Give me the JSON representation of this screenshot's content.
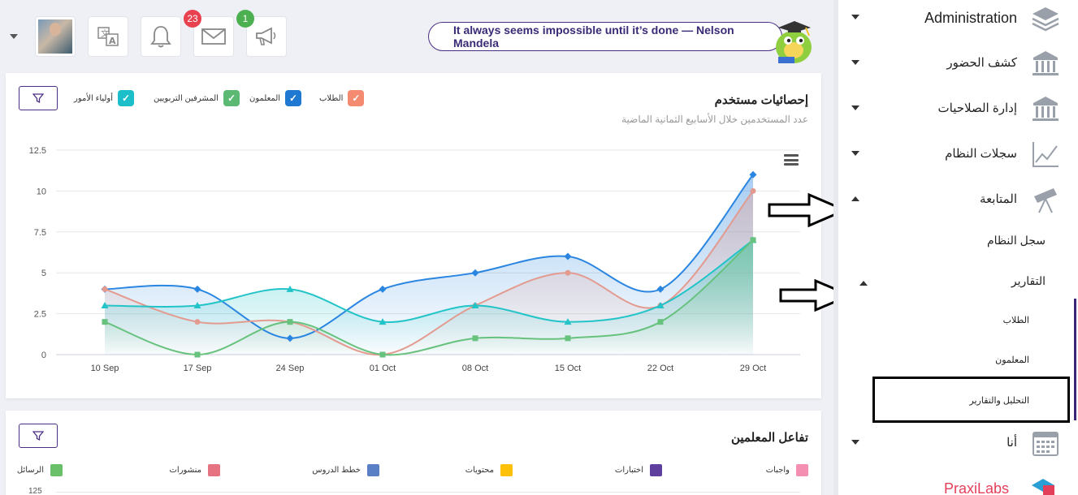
{
  "topbar": {
    "notifications_count": "23",
    "messages_count": "1",
    "quote": "It always seems impossible until it’s done — Nelson Mandela"
  },
  "user_stats": {
    "title": "إحصائيات مستخدم",
    "subtitle": "عدد المستخدمين خلال الأسابيع الثمانية الماضية",
    "legend": [
      {
        "label": "الطلاب",
        "color": "#f48a70"
      },
      {
        "label": "المعلمون",
        "color": "#1f78d1"
      },
      {
        "label": "المشرفين التربويين",
        "color": "#5bb974"
      },
      {
        "label": "أولياء الأمور",
        "color": "#1bbec9"
      }
    ]
  },
  "chart_data": {
    "type": "area",
    "categories": [
      "10 Sep",
      "17 Sep",
      "24 Sep",
      "01 Oct",
      "08 Oct",
      "15 Oct",
      "22 Oct",
      "29 Oct"
    ],
    "ylim": [
      0,
      12.5
    ],
    "yticks": [
      "0",
      "2.5",
      "5",
      "7.5",
      "10",
      "12.5"
    ],
    "grid": true,
    "series": [
      {
        "name": "الطلاب",
        "color": "#e39a8f",
        "marker": "circle",
        "values": [
          4,
          2,
          2,
          0,
          3,
          5,
          3,
          10
        ]
      },
      {
        "name": "المعلمون",
        "color": "#2a86e0",
        "marker": "diamond",
        "values": [
          4,
          4,
          1,
          4,
          5,
          6,
          4,
          11
        ]
      },
      {
        "name": "المشرفين التربويين",
        "color": "#66c27d",
        "marker": "square",
        "values": [
          2,
          0,
          2,
          0,
          1,
          1,
          2,
          7
        ]
      },
      {
        "name": "أولياء الأمور",
        "color": "#22c4c8",
        "marker": "triangle",
        "values": [
          3,
          3,
          4,
          2,
          3,
          2,
          3,
          7
        ]
      }
    ]
  },
  "teacher_interaction": {
    "title": "تفاعل المعلمين",
    "legend": [
      {
        "label": "واجبات",
        "color": "#f48fb1"
      },
      {
        "label": "اختبارات",
        "color": "#5e3f9e"
      },
      {
        "label": "محتويات",
        "color": "#ffc107"
      },
      {
        "label": "خطط الدروس",
        "color": "#5b7fc4"
      },
      {
        "label": "منشورات",
        "color": "#e57382"
      },
      {
        "label": "الرسائل",
        "color": "#6abf69"
      }
    ],
    "y_first_tick": "125"
  },
  "sidebar": {
    "items": [
      {
        "label": "Administration",
        "icon": "layers-icon",
        "expanded": false
      },
      {
        "label": "كشف الحضور",
        "icon": "bank-icon",
        "expanded": false
      },
      {
        "label": "إدارة الصلاحيات",
        "icon": "bank-icon",
        "expanded": false
      },
      {
        "label": "سجلات النظام",
        "icon": "trend-chart-icon",
        "expanded": false
      },
      {
        "label": "المتابعة",
        "icon": "telescope-icon",
        "expanded": true
      }
    ],
    "monitoring": {
      "system_log": "سجل النظام",
      "reports": "التقارير",
      "reports_children": [
        "الطلاب",
        "المعلمون",
        "التحليل والتقارير"
      ]
    },
    "me": {
      "label": "أنا",
      "icon": "calendar-icon"
    },
    "brand": "PraxiLabs"
  }
}
